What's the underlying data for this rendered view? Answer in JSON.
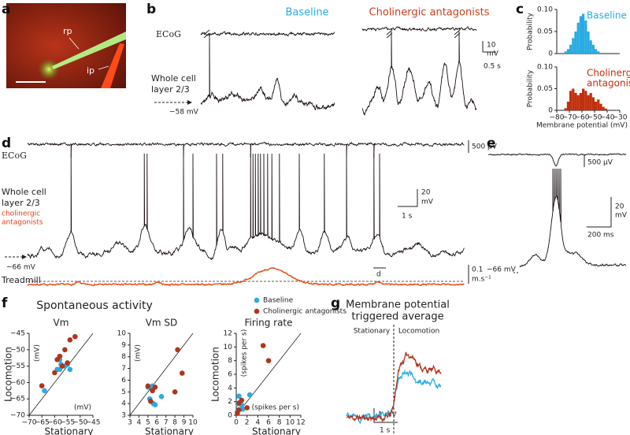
{
  "figure": {
    "a": {
      "letter": "a",
      "rp": "rp",
      "ip": "ip"
    },
    "b": {
      "letter": "b",
      "baseline": "Baseline",
      "antagonists": "Cholinergic antagonists",
      "ecog": "ECoG",
      "wc1": "Whole cell",
      "wc2": "layer 2/3",
      "rest": "−58 mV",
      "scale_v": "10",
      "scale_v_unit": "mV",
      "scale_t": "0.5 s"
    },
    "c": {
      "letter": "c"
    },
    "d": {
      "letter": "d",
      "ecog": "ECoG",
      "wc1": "Whole cell",
      "wc2": "layer 2/3",
      "drug1": "cholinergic",
      "drug2": "antagonists",
      "rest": "−66 mV",
      "ecog_scale": "500 µV",
      "scale_v": "20",
      "scale_v_unit": "mV",
      "scale_t": "1 s",
      "treadmill": "Treadmill",
      "speed": "0.1",
      "speed_unit": "m.s⁻¹",
      "inset": "d"
    },
    "e": {
      "letter": "e",
      "ecog_scale": "500 µV",
      "scale_v": "20",
      "scale_v_unit": "mV",
      "scale_t": "200 ms",
      "rest": "−66 mV"
    },
    "f": {
      "letter": "f",
      "title": "Spontaneous activity"
    },
    "g": {
      "letter": "g",
      "title1": "Membrane potential",
      "title2": "triggered average",
      "stationary": "Stationary",
      "locomotion": "Locomotion",
      "scale_v": "1 mV",
      "scale_t": "1 s"
    }
  },
  "chart_data": [
    {
      "type": "scatter",
      "title": "Vm",
      "xlabel": "Stationary",
      "ylabel": "Locomotion",
      "x_unit": "(mV)",
      "y_unit": "(mV)",
      "xlim": [
        -70,
        -45
      ],
      "ylim": [
        -70,
        -45
      ],
      "xticks": [
        {
          "value": -70,
          "label": "−70"
        },
        {
          "value": -65,
          "label": "−65"
        },
        {
          "value": -60,
          "label": "−60"
        },
        {
          "value": -55,
          "label": "−55"
        },
        {
          "value": -50,
          "label": "−50"
        },
        {
          "value": -45,
          "label": "−45"
        }
      ],
      "yticks": [
        {
          "value": -70,
          "label": "−70"
        },
        {
          "value": -65,
          "label": "−65"
        },
        {
          "value": -60,
          "label": "−60"
        },
        {
          "value": -55,
          "label": "−55"
        },
        {
          "value": -50,
          "label": "−50"
        },
        {
          "value": -45,
          "label": "−45"
        }
      ],
      "series": [
        {
          "name": "Baseline",
          "color": "#29abe2",
          "x": [
            -64,
            -58,
            -57,
            -57.5,
            -58,
            -56,
            -55,
            -59,
            -54
          ],
          "values": [
            -62.5,
            -56,
            -55,
            -54.5,
            -53,
            -55,
            -54.5,
            -56,
            -56
          ]
        },
        {
          "name": "Cholinergic antagonists",
          "color": "#b0341c",
          "x": [
            -65,
            -60,
            -59,
            -58,
            -56,
            -54,
            -52,
            -55,
            -57
          ],
          "values": [
            -61,
            -57,
            -53,
            -52,
            -50,
            -47,
            -46,
            -54,
            -55
          ]
        }
      ]
    },
    {
      "type": "scatter",
      "title": "Vm SD",
      "xlabel": "Stationary",
      "y_unit": "(mV)",
      "xlim": [
        3,
        10
      ],
      "ylim": [
        3,
        10
      ],
      "xticks": [
        3,
        4,
        5,
        6,
        7,
        8,
        9,
        10
      ],
      "yticks": [
        3,
        4,
        5,
        6,
        7,
        8,
        9,
        10
      ],
      "series": [
        {
          "color": "#29abe2",
          "x": [
            5,
            5.5,
            5.8,
            6.5,
            5.2,
            5.6
          ],
          "values": [
            5.4,
            5.5,
            3.9,
            4.6,
            4.4,
            4.0
          ]
        },
        {
          "color": "#b0341c",
          "x": [
            5.3,
            5.8,
            5.5,
            8,
            8.3,
            8.8,
            5
          ],
          "values": [
            4.2,
            5.4,
            5.1,
            5,
            8.6,
            6.6,
            5.5
          ]
        }
      ]
    },
    {
      "type": "scatter",
      "title": "Firing rate",
      "xlabel": "Stationary",
      "ylabel": "Locomotion",
      "x_unit": "(spikes per s)",
      "y_unit": "(spikes per s)",
      "xlim": [
        0,
        12
      ],
      "ylim": [
        0,
        12
      ],
      "xticks": [
        0,
        2,
        4,
        6,
        8,
        10,
        12
      ],
      "yticks": [
        0,
        2,
        4,
        6,
        8,
        10,
        12
      ],
      "series": [
        {
          "color": "#29abe2",
          "x": [
            0.2,
            0.5,
            1,
            2.5,
            0.3,
            1.2
          ],
          "values": [
            0.5,
            2.8,
            1.5,
            3,
            1.7,
            0.9
          ]
        },
        {
          "color": "#b0341c",
          "x": [
            0.2,
            0.5,
            1,
            5,
            6,
            2,
            0.5
          ],
          "values": [
            0.3,
            1.8,
            2.2,
            10.2,
            8,
            1.1,
            0.8
          ]
        }
      ]
    },
    {
      "type": "histogram",
      "annotations": [
        "Baseline"
      ],
      "ylabel": "Probability",
      "color": "#29abe2",
      "xlim": [
        -80,
        -30
      ],
      "ylim": [
        0,
        0.1
      ],
      "yticks": [
        0,
        0.05,
        {
          "value": 0.1,
          "label": "0.10"
        }
      ],
      "bins": [
        -74,
        -72,
        -70,
        -68,
        -66,
        -64,
        -62,
        -60,
        -58,
        -56,
        -54,
        -52,
        -50,
        -48,
        -46
      ],
      "values": [
        0.005,
        0.01,
        0.02,
        0.035,
        0.05,
        0.07,
        0.085,
        0.09,
        0.075,
        0.05,
        0.03,
        0.02,
        0.01,
        0.005
      ]
    },
    {
      "type": "histogram",
      "annotations": [
        "Cholinergic",
        "antagonists"
      ],
      "ylabel": "Probability",
      "xlabel": "Membrane potential (mV)",
      "color": "#c0300f",
      "xlim": [
        -80,
        -30
      ],
      "ylim": [
        0,
        0.1
      ],
      "yticks": [
        0,
        0.05,
        {
          "value": 0.1,
          "label": "0.10"
        }
      ],
      "xticks": [
        {
          "value": -80,
          "label": "−80"
        },
        {
          "value": -70,
          "label": "−70"
        },
        {
          "value": -60,
          "label": "−60"
        },
        {
          "value": -50,
          "label": "−50"
        },
        {
          "value": -40,
          "label": "−40"
        },
        {
          "value": -30,
          "label": "−30"
        }
      ],
      "bins": [
        -74,
        -72,
        -70,
        -68,
        -66,
        -64,
        -62,
        -60,
        -58,
        -56,
        -54,
        -52,
        -50,
        -48,
        -46,
        -44,
        -42,
        -40
      ],
      "values": [
        0.005,
        0.02,
        0.045,
        0.05,
        0.04,
        0.035,
        0.04,
        0.05,
        0.045,
        0.035,
        0.04,
        0.03,
        0.02,
        0.025,
        0.015,
        0.008,
        0.004
      ]
    }
  ]
}
